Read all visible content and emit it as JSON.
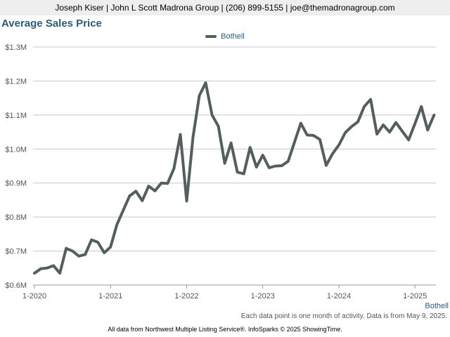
{
  "header": {
    "text": "Joseph Kiser | John L Scott Madrona Group | (206) 899-5155 | joe@themadronagroup.com"
  },
  "caption": "Each data point is one month of activity. Data is from May 9, 2025.",
  "footer": "All data from Northwest Multiple Listing Service®. InfoSparks © 2025 ShowingTime.",
  "chart_data": {
    "type": "line",
    "title": "Average Sales Price",
    "xlabel": "",
    "ylabel": "",
    "ylim": [
      600000,
      1300000
    ],
    "y_ticks": [
      600000,
      700000,
      800000,
      900000,
      1000000,
      1100000,
      1200000,
      1300000
    ],
    "y_tick_labels": [
      "$0.6M",
      "$0.7M",
      "$0.8M",
      "$0.9M",
      "$1.0M",
      "$1.1M",
      "$1.2M",
      "$1.3M"
    ],
    "x_tick_labels": [
      "1-2020",
      "1-2021",
      "1-2022",
      "1-2023",
      "1-2024",
      "1-2025"
    ],
    "legend_position": "top-center",
    "grid": "horizontal",
    "series_end_label": "Bothell",
    "series": [
      {
        "name": "Bothell",
        "color": "#555e5e",
        "x": [
          "2020-01",
          "2020-02",
          "2020-03",
          "2020-04",
          "2020-05",
          "2020-06",
          "2020-07",
          "2020-08",
          "2020-09",
          "2020-10",
          "2020-11",
          "2020-12",
          "2021-01",
          "2021-02",
          "2021-03",
          "2021-04",
          "2021-05",
          "2021-06",
          "2021-07",
          "2021-08",
          "2021-09",
          "2021-10",
          "2021-11",
          "2021-12",
          "2022-01",
          "2022-02",
          "2022-03",
          "2022-04",
          "2022-05",
          "2022-06",
          "2022-07",
          "2022-08",
          "2022-09",
          "2022-10",
          "2022-11",
          "2022-12",
          "2023-01",
          "2023-02",
          "2023-03",
          "2023-04",
          "2023-05",
          "2023-06",
          "2023-07",
          "2023-08",
          "2023-09",
          "2023-10",
          "2023-11",
          "2023-12",
          "2024-01",
          "2024-02",
          "2024-03",
          "2024-04",
          "2024-05",
          "2024-06",
          "2024-07",
          "2024-08",
          "2024-09",
          "2024-10",
          "2024-11",
          "2024-12",
          "2025-01",
          "2025-02",
          "2025-03",
          "2025-04"
        ],
        "values": [
          635000,
          648000,
          650000,
          657000,
          635000,
          708000,
          700000,
          685000,
          690000,
          733000,
          726000,
          695000,
          712000,
          778000,
          820000,
          862000,
          876000,
          848000,
          891000,
          877000,
          900000,
          899000,
          943000,
          1043000,
          847000,
          1035000,
          1157000,
          1195000,
          1100000,
          1067000,
          958000,
          1018000,
          932000,
          927000,
          1005000,
          947000,
          982000,
          945000,
          950000,
          951000,
          964000,
          1020000,
          1076000,
          1041000,
          1040000,
          1028000,
          952000,
          986000,
          1012000,
          1048000,
          1066000,
          1080000,
          1125000,
          1146000,
          1044000,
          1071000,
          1050000,
          1078000,
          1052000,
          1027000,
          1075000,
          1125000,
          1056000,
          1100000
        ]
      }
    ]
  }
}
